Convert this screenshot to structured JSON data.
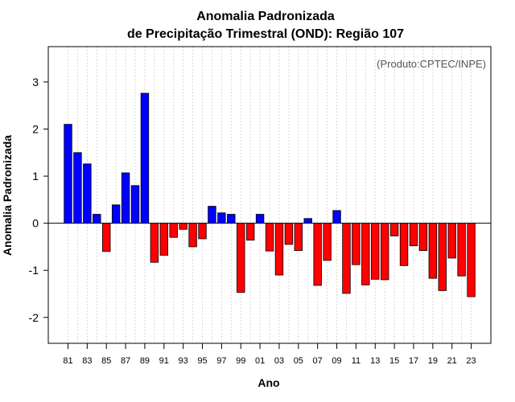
{
  "chart_data": {
    "type": "bar",
    "title_line1": "Anomalia Padronizada",
    "title_line2": "de Precipitação Trimestral (OND): Região 107",
    "xlabel": "Ano",
    "ylabel": "Anomalia Padronizada",
    "credit": "(Produto:CPTEC/INPE)",
    "ylim": [
      -2.55,
      3.75
    ],
    "yticks": [
      -2,
      -1,
      0,
      1,
      2,
      3
    ],
    "grid": "vertical dotted",
    "positive_color": "#0000ff",
    "negative_color": "#ff0000",
    "categories": [
      "81",
      "82",
      "83",
      "84",
      "85",
      "86",
      "87",
      "88",
      "89",
      "90",
      "91",
      "92",
      "93",
      "94",
      "95",
      "96",
      "97",
      "98",
      "99",
      "00",
      "01",
      "02",
      "03",
      "04",
      "05",
      "06",
      "07",
      "08",
      "09",
      "10",
      "11",
      "12",
      "13",
      "14",
      "15",
      "16",
      "17",
      "18",
      "19",
      "20",
      "21",
      "22",
      "23"
    ],
    "xtick_labels": [
      "81",
      "83",
      "85",
      "87",
      "89",
      "91",
      "93",
      "95",
      "97",
      "99",
      "01",
      "03",
      "05",
      "07",
      "09",
      "11",
      "13",
      "15",
      "17",
      "19",
      "21",
      "23"
    ],
    "values": [
      2.1,
      1.5,
      1.26,
      0.19,
      -0.6,
      0.39,
      1.07,
      0.8,
      2.76,
      -0.83,
      -0.68,
      -0.3,
      -0.13,
      -0.5,
      -0.33,
      0.36,
      0.22,
      0.19,
      -1.47,
      -0.36,
      0.19,
      -0.59,
      -1.1,
      -0.45,
      -0.58,
      0.1,
      -1.32,
      -0.79,
      0.27,
      -1.49,
      -0.88,
      -1.31,
      -1.19,
      -1.2,
      -0.27,
      -0.9,
      -0.48,
      -0.58,
      -1.17,
      -1.43,
      -0.74,
      -1.12,
      -1.56
    ]
  }
}
